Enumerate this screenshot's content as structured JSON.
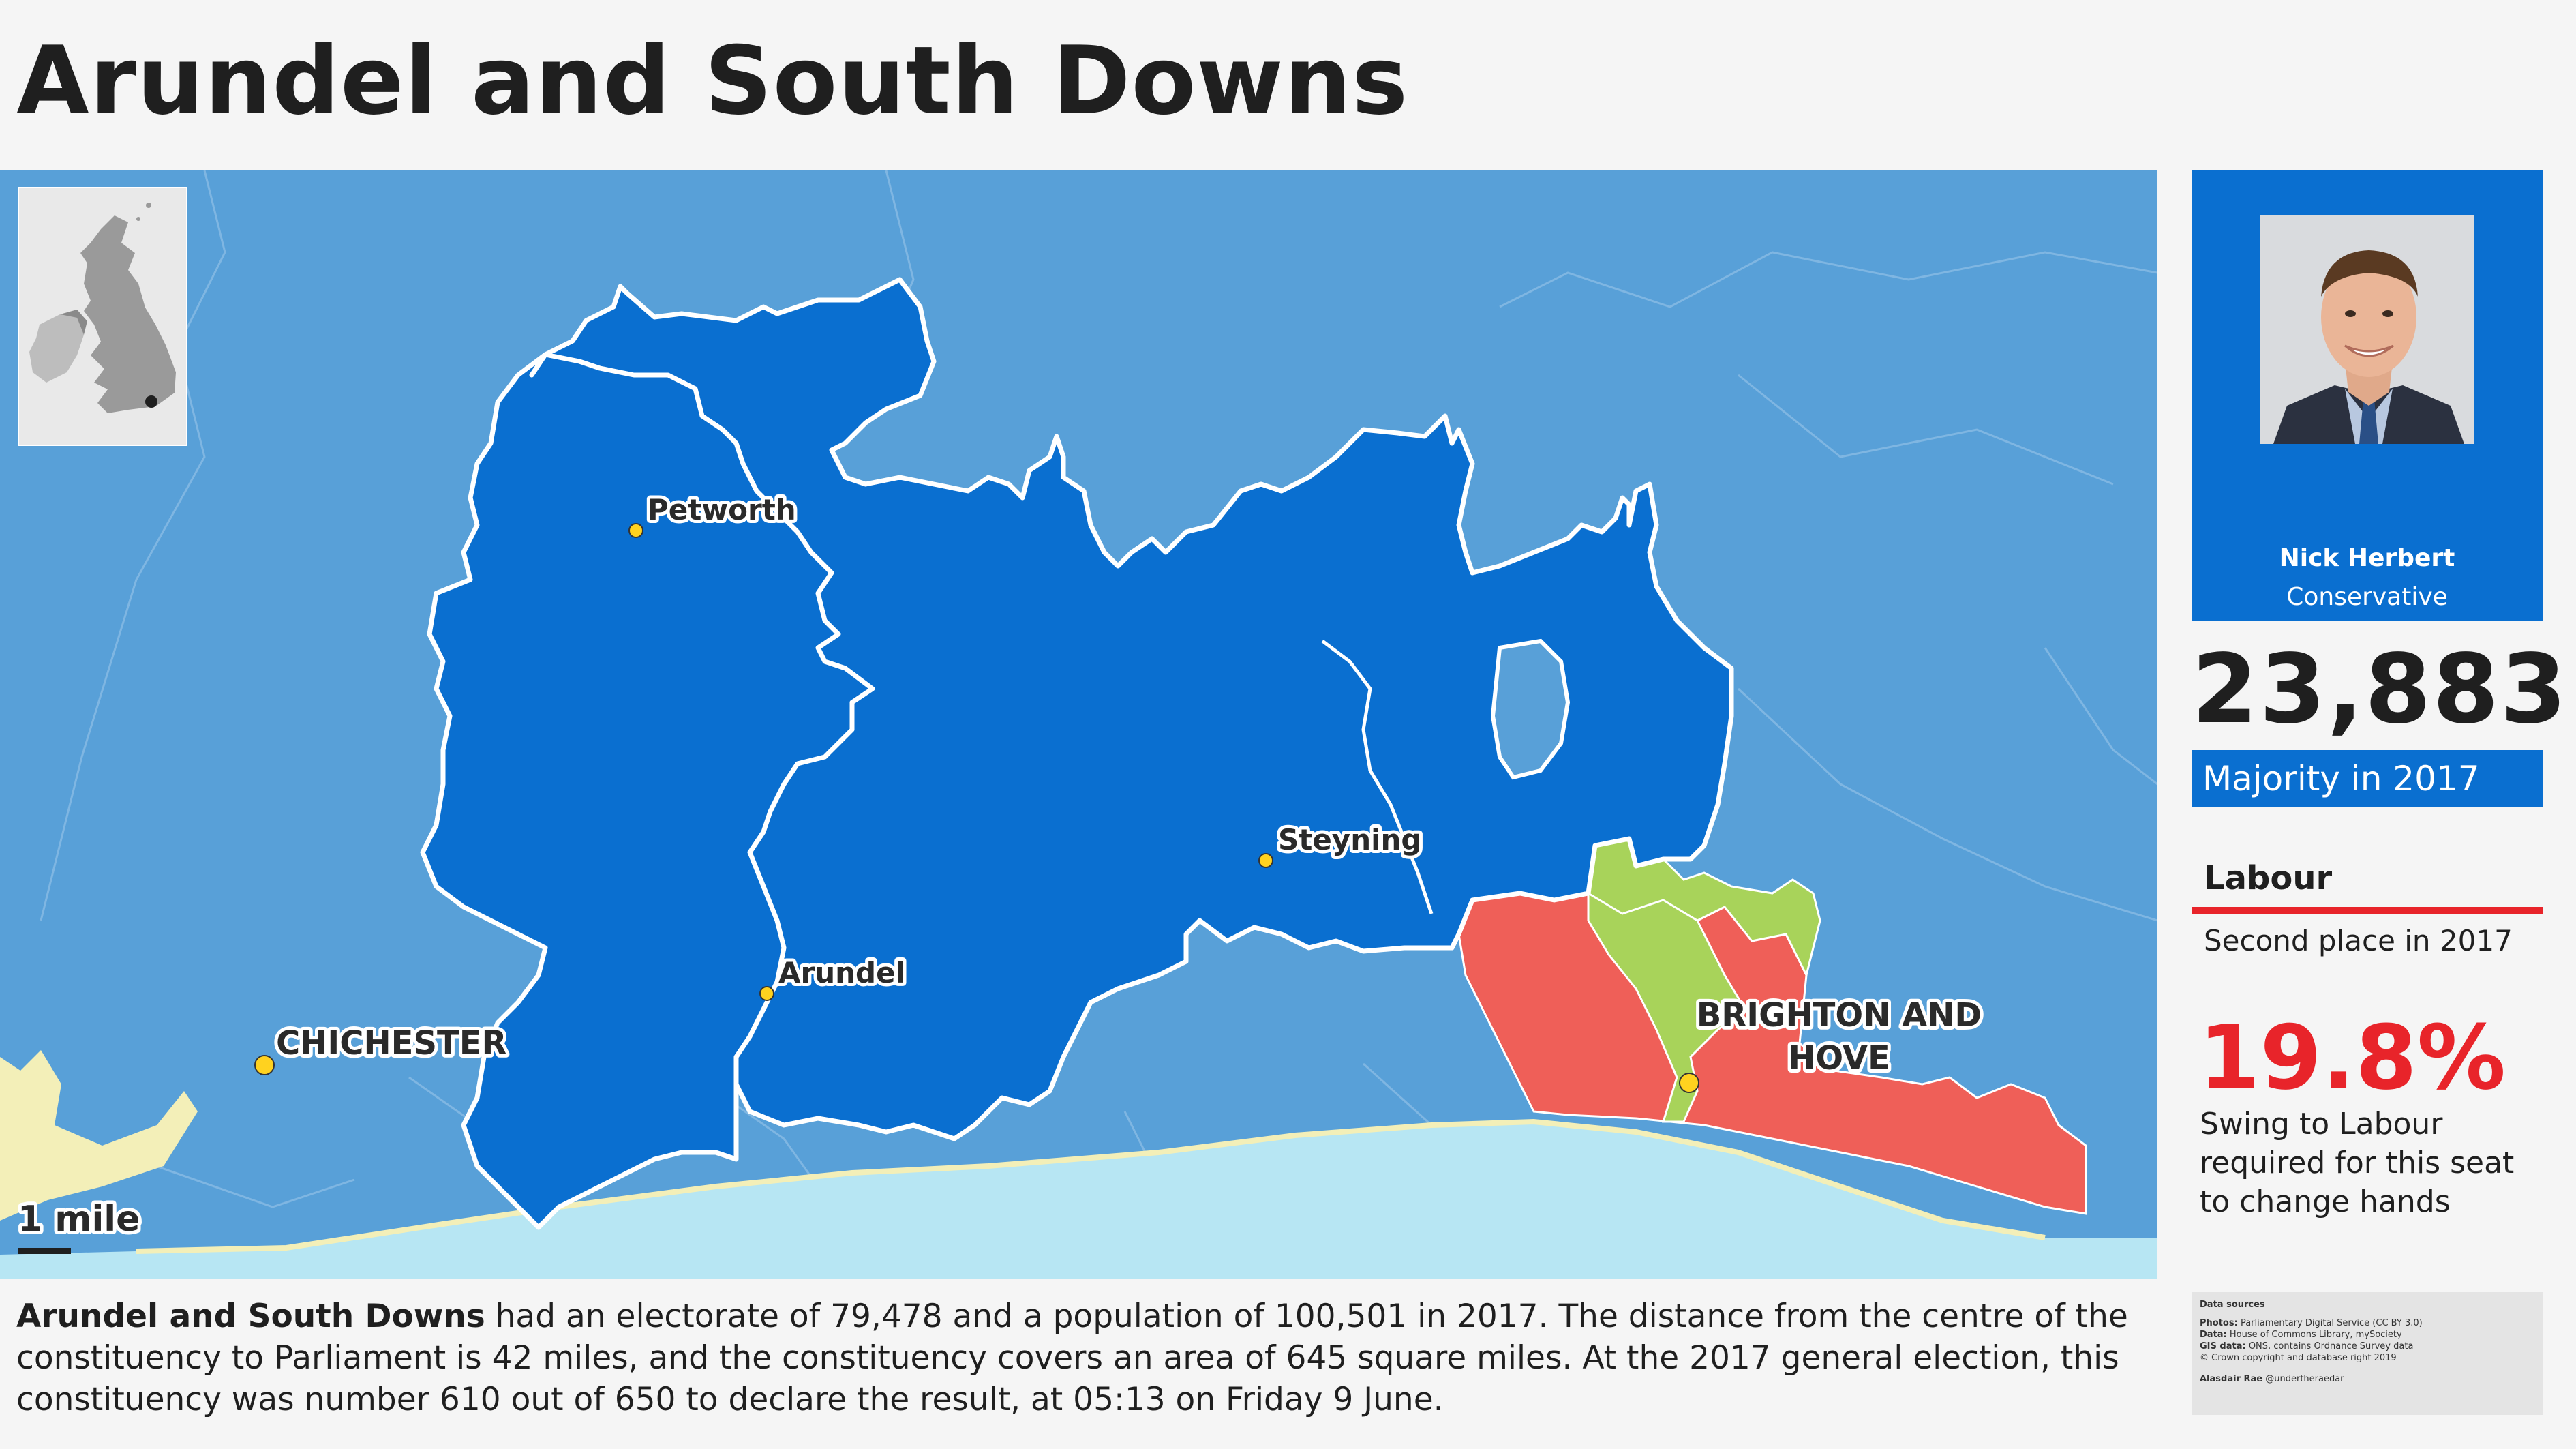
{
  "title": "Arundel and South Downs",
  "map": {
    "places": {
      "petworth": "Petworth",
      "steyning": "Steyning",
      "arundel": "Arundel",
      "chichester": "CHICHESTER",
      "brighton_line1": "BRIGHTON AND",
      "brighton_line2": "HOVE"
    },
    "scale_label": "1 mile",
    "colors": {
      "sea": "#b7e6f3",
      "land": "#58a0d8",
      "constituency": "#0a6fd0",
      "labour_area": "#ef5f58",
      "green_area": "#a8d35a",
      "town_marker": "#ffd21f"
    }
  },
  "mp": {
    "name": "Nick Herbert",
    "party": "Conservative"
  },
  "majority": {
    "value": "23,883",
    "label": "Majority in 2017"
  },
  "second_place": {
    "party": "Labour",
    "label": "Second place in 2017",
    "color": "#e8242a"
  },
  "swing": {
    "value": "19.8%",
    "label": "Swing to Labour required for this seat to change hands"
  },
  "sources": {
    "title": "Data sources",
    "photos_label": "Photos:",
    "photos": "Parliamentary Digital Service (CC BY 3.0)",
    "data_label": "Data:",
    "data": "House of Commons Library, mySociety",
    "gis_label": "GIS data:",
    "gis": "ONS, contains Ordnance Survey data",
    "copyright": "© Crown copyright and database right 2019",
    "author": "Alasdair Rae",
    "author_handle": "@undertheraedar"
  },
  "description": {
    "name": "Arundel and South Downs",
    "text": " had an electorate of 79,478 and a population of 100,501 in 2017. The distance from the centre of the constituency to Parliament is 42 miles, and the constituency covers an area of 645 square miles. At the 2017 general election, this constituency was number 610 out of 650 to declare the result, at 05:13 on Friday 9 June."
  }
}
